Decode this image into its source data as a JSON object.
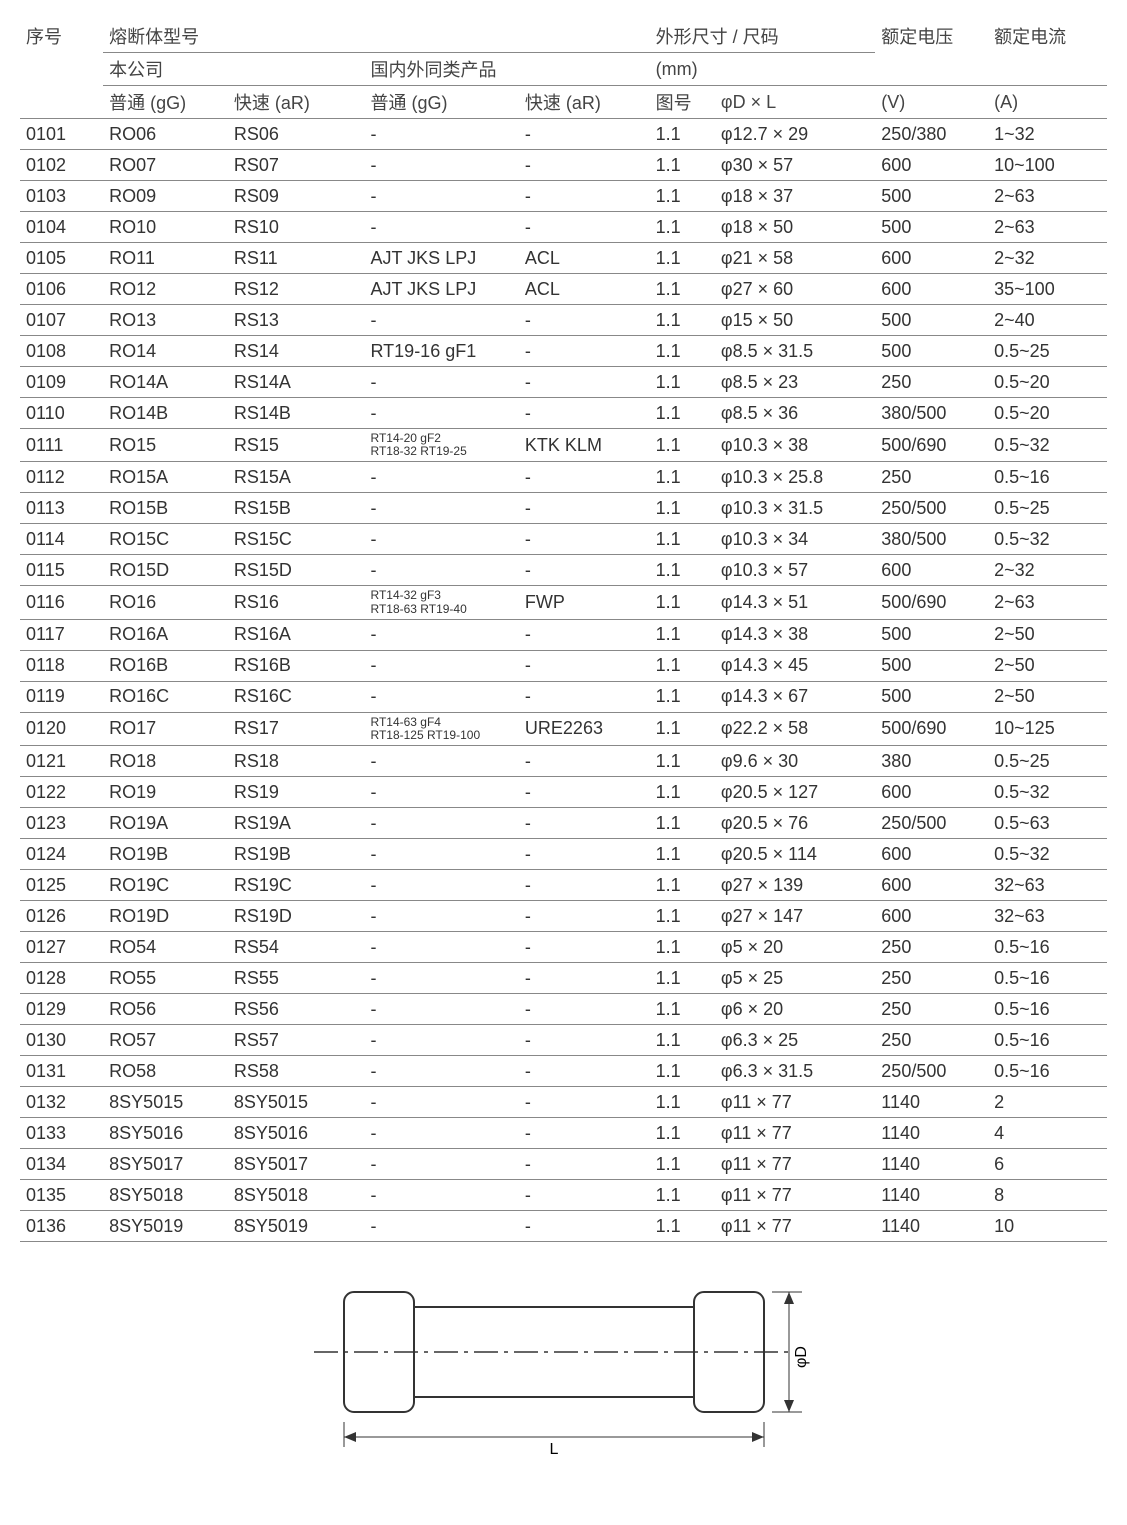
{
  "headers": {
    "seq": "序号",
    "model": "熔断体型号",
    "ours": "本公司",
    "others": "国内外同类产品",
    "gg": "普通 (gG)",
    "ar": "快速 (aR)",
    "dims": "外形尺寸 / 尺码",
    "mm": "(mm)",
    "fig": "图号",
    "dl": "φD × L",
    "volt": "额定电压",
    "voltU": "(V)",
    "amp": "额定电流",
    "ampU": "(A)"
  },
  "diagram": {
    "L_label": "L",
    "D_label": "φD",
    "stroke": "#333333",
    "fill": "#ffffff"
  },
  "rows": [
    {
      "seq": "0101",
      "gg1": "RO06",
      "ar1": "RS06",
      "gg2": "-",
      "ar2": "-",
      "fig": "1.1",
      "dl": "φ12.7 × 29",
      "v": "250/380",
      "a": "1~32"
    },
    {
      "seq": "0102",
      "gg1": "RO07",
      "ar1": "RS07",
      "gg2": "-",
      "ar2": "-",
      "fig": "1.1",
      "dl": "φ30 × 57",
      "v": "600",
      "a": "10~100"
    },
    {
      "seq": "0103",
      "gg1": "RO09",
      "ar1": "RS09",
      "gg2": "-",
      "ar2": "-",
      "fig": "1.1",
      "dl": "φ18 × 37",
      "v": "500",
      "a": "2~63"
    },
    {
      "seq": "0104",
      "gg1": "RO10",
      "ar1": "RS10",
      "gg2": "-",
      "ar2": "-",
      "fig": "1.1",
      "dl": "φ18 × 50",
      "v": "500",
      "a": "2~63"
    },
    {
      "seq": "0105",
      "gg1": "RO11",
      "ar1": "RS11",
      "gg2": "AJT JKS LPJ",
      "ar2": "ACL",
      "fig": "1.1",
      "dl": "φ21 × 58",
      "v": "600",
      "a": "2~32"
    },
    {
      "seq": "0106",
      "gg1": "RO12",
      "ar1": "RS12",
      "gg2": "AJT JKS LPJ",
      "ar2": "ACL",
      "fig": "1.1",
      "dl": "φ27 × 60",
      "v": "600",
      "a": "35~100"
    },
    {
      "seq": "0107",
      "gg1": "RO13",
      "ar1": "RS13",
      "gg2": "-",
      "ar2": "-",
      "fig": "1.1",
      "dl": "φ15 × 50",
      "v": "500",
      "a": "2~40"
    },
    {
      "seq": "0108",
      "gg1": "RO14",
      "ar1": "RS14",
      "gg2": "RT19-16 gF1",
      "ar2": "-",
      "fig": "1.1",
      "dl": "φ8.5 × 31.5",
      "v": "500",
      "a": "0.5~25"
    },
    {
      "seq": "0109",
      "gg1": "RO14A",
      "ar1": "RS14A",
      "gg2": "-",
      "ar2": "-",
      "fig": "1.1",
      "dl": "φ8.5 × 23",
      "v": "250",
      "a": "0.5~20"
    },
    {
      "seq": "0110",
      "gg1": "RO14B",
      "ar1": "RS14B",
      "gg2": "-",
      "ar2": "-",
      "fig": "1.1",
      "dl": "φ8.5 × 36",
      "v": "380/500",
      "a": "0.5~20"
    },
    {
      "seq": "0111",
      "gg1": "RO15",
      "ar1": "RS15",
      "gg2": "RT14-20 gF2\nRT18-32 RT19-25",
      "gg2_small": true,
      "ar2": "KTK KLM",
      "fig": "1.1",
      "dl": "φ10.3 × 38",
      "v": "500/690",
      "a": "0.5~32"
    },
    {
      "seq": "0112",
      "gg1": "RO15A",
      "ar1": "RS15A",
      "gg2": "-",
      "ar2": "-",
      "fig": "1.1",
      "dl": "φ10.3 × 25.8",
      "v": "250",
      "a": "0.5~16"
    },
    {
      "seq": "0113",
      "gg1": "RO15B",
      "ar1": "RS15B",
      "gg2": "-",
      "ar2": "-",
      "fig": "1.1",
      "dl": "φ10.3 × 31.5",
      "v": "250/500",
      "a": "0.5~25"
    },
    {
      "seq": "0114",
      "gg1": "RO15C",
      "ar1": "RS15C",
      "gg2": "-",
      "ar2": "-",
      "fig": "1.1",
      "dl": "φ10.3 × 34",
      "v": "380/500",
      "a": "0.5~32"
    },
    {
      "seq": "0115",
      "gg1": "RO15D",
      "ar1": "RS15D",
      "gg2": "-",
      "ar2": "-",
      "fig": "1.1",
      "dl": "φ10.3 × 57",
      "v": "600",
      "a": "2~32"
    },
    {
      "seq": "0116",
      "gg1": "RO16",
      "ar1": "RS16",
      "gg2": "RT14-32 gF3\nRT18-63 RT19-40",
      "gg2_small": true,
      "ar2": "FWP",
      "fig": "1.1",
      "dl": "φ14.3 × 51",
      "v": "500/690",
      "a": "2~63"
    },
    {
      "seq": "0117",
      "gg1": "RO16A",
      "ar1": "RS16A",
      "gg2": "-",
      "ar2": "-",
      "fig": "1.1",
      "dl": "φ14.3 × 38",
      "v": "500",
      "a": "2~50"
    },
    {
      "seq": "0118",
      "gg1": "RO16B",
      "ar1": "RS16B",
      "gg2": "-",
      "ar2": "-",
      "fig": "1.1",
      "dl": "φ14.3 × 45",
      "v": "500",
      "a": "2~50"
    },
    {
      "seq": "0119",
      "gg1": "RO16C",
      "ar1": "RS16C",
      "gg2": "-",
      "ar2": "-",
      "fig": "1.1",
      "dl": "φ14.3 × 67",
      "v": "500",
      "a": "2~50"
    },
    {
      "seq": "0120",
      "gg1": "RO17",
      "ar1": "RS17",
      "gg2": "RT14-63 gF4\nRT18-125 RT19-100",
      "gg2_small": true,
      "ar2": "URE2263",
      "fig": "1.1",
      "dl": "φ22.2 × 58",
      "v": "500/690",
      "a": "10~125"
    },
    {
      "seq": "0121",
      "gg1": "RO18",
      "ar1": "RS18",
      "gg2": "-",
      "ar2": "-",
      "fig": "1.1",
      "dl": "φ9.6 × 30",
      "v": "380",
      "a": "0.5~25"
    },
    {
      "seq": "0122",
      "gg1": "RO19",
      "ar1": "RS19",
      "gg2": "-",
      "ar2": "-",
      "fig": "1.1",
      "dl": "φ20.5 × 127",
      "v": "600",
      "a": "0.5~32"
    },
    {
      "seq": "0123",
      "gg1": "RO19A",
      "ar1": "RS19A",
      "gg2": "-",
      "ar2": "-",
      "fig": "1.1",
      "dl": "φ20.5 × 76",
      "v": "250/500",
      "a": "0.5~63"
    },
    {
      "seq": "0124",
      "gg1": "RO19B",
      "ar1": "RS19B",
      "gg2": "-",
      "ar2": "-",
      "fig": "1.1",
      "dl": "φ20.5 × 114",
      "v": "600",
      "a": "0.5~32"
    },
    {
      "seq": "0125",
      "gg1": "RO19C",
      "ar1": "RS19C",
      "gg2": "-",
      "ar2": "-",
      "fig": "1.1",
      "dl": "φ27 × 139",
      "v": "600",
      "a": "32~63"
    },
    {
      "seq": "0126",
      "gg1": "RO19D",
      "ar1": "RS19D",
      "gg2": "-",
      "ar2": "-",
      "fig": "1.1",
      "dl": "φ27 × 147",
      "v": "600",
      "a": "32~63"
    },
    {
      "seq": "0127",
      "gg1": "RO54",
      "ar1": "RS54",
      "gg2": "-",
      "ar2": "-",
      "fig": "1.1",
      "dl": "φ5 × 20",
      "v": "250",
      "a": "0.5~16"
    },
    {
      "seq": "0128",
      "gg1": "RO55",
      "ar1": "RS55",
      "gg2": "-",
      "ar2": "-",
      "fig": "1.1",
      "dl": "φ5 × 25",
      "v": "250",
      "a": "0.5~16"
    },
    {
      "seq": "0129",
      "gg1": "RO56",
      "ar1": "RS56",
      "gg2": "-",
      "ar2": "-",
      "fig": "1.1",
      "dl": "φ6 × 20",
      "v": "250",
      "a": "0.5~16"
    },
    {
      "seq": "0130",
      "gg1": "RO57",
      "ar1": "RS57",
      "gg2": "-",
      "ar2": "-",
      "fig": "1.1",
      "dl": "φ6.3 × 25",
      "v": "250",
      "a": "0.5~16"
    },
    {
      "seq": "0131",
      "gg1": "RO58",
      "ar1": "RS58",
      "gg2": "-",
      "ar2": "-",
      "fig": "1.1",
      "dl": "φ6.3 × 31.5",
      "v": "250/500",
      "a": "0.5~16"
    },
    {
      "seq": "0132",
      "gg1": "8SY5015",
      "ar1": "8SY5015",
      "gg2": "-",
      "ar2": "-",
      "fig": "1.1",
      "dl": "φ11 × 77",
      "v": "1140",
      "a": "2"
    },
    {
      "seq": "0133",
      "gg1": "8SY5016",
      "ar1": "8SY5016",
      "gg2": "-",
      "ar2": "-",
      "fig": "1.1",
      "dl": "φ11 × 77",
      "v": "1140",
      "a": "4"
    },
    {
      "seq": "0134",
      "gg1": "8SY5017",
      "ar1": "8SY5017",
      "gg2": "-",
      "ar2": "-",
      "fig": "1.1",
      "dl": "φ11 × 77",
      "v": "1140",
      "a": "6"
    },
    {
      "seq": "0135",
      "gg1": "8SY5018",
      "ar1": "8SY5018",
      "gg2": "-",
      "ar2": "-",
      "fig": "1.1",
      "dl": "φ11 × 77",
      "v": "1140",
      "a": "8"
    },
    {
      "seq": "0136",
      "gg1": "8SY5019",
      "ar1": "8SY5019",
      "gg2": "-",
      "ar2": "-",
      "fig": "1.1",
      "dl": "φ11 × 77",
      "v": "1140",
      "a": "10"
    }
  ]
}
